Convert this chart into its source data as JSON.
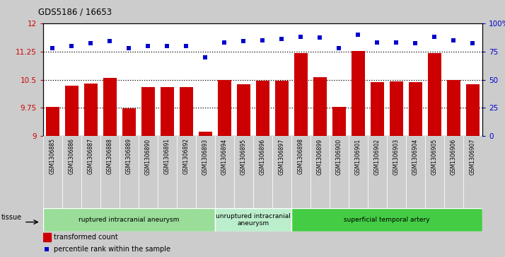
{
  "title": "GDS5186 / 16653",
  "samples": [
    "GSM1306885",
    "GSM1306886",
    "GSM1306887",
    "GSM1306888",
    "GSM1306889",
    "GSM1306890",
    "GSM1306891",
    "GSM1306892",
    "GSM1306893",
    "GSM1306894",
    "GSM1306895",
    "GSM1306896",
    "GSM1306897",
    "GSM1306898",
    "GSM1306899",
    "GSM1306900",
    "GSM1306901",
    "GSM1306902",
    "GSM1306903",
    "GSM1306904",
    "GSM1306905",
    "GSM1306906",
    "GSM1306907"
  ],
  "transformed_count": [
    9.78,
    10.35,
    10.4,
    10.55,
    9.74,
    10.3,
    10.3,
    10.3,
    9.12,
    10.5,
    10.38,
    10.47,
    10.47,
    11.2,
    10.57,
    9.78,
    11.27,
    10.44,
    10.45,
    10.43,
    11.2,
    10.5,
    10.37
  ],
  "percentile_rank": [
    78,
    80,
    82,
    84,
    78,
    80,
    80,
    80,
    70,
    83,
    84,
    85,
    86,
    88,
    87,
    78,
    90,
    83,
    83,
    82,
    88,
    85,
    82
  ],
  "bar_color": "#cc0000",
  "dot_color": "#0000cc",
  "ylim_left": [
    9,
    12
  ],
  "ylim_right": [
    0,
    100
  ],
  "yticks_left": [
    9,
    9.75,
    10.5,
    11.25,
    12
  ],
  "yticks_right": [
    0,
    25,
    50,
    75,
    100
  ],
  "ytick_labels_left": [
    "9",
    "9.75",
    "10.5",
    "11.25",
    "12"
  ],
  "ytick_labels_right": [
    "0",
    "25",
    "50",
    "75",
    "100%"
  ],
  "hlines": [
    9.75,
    10.5,
    11.25
  ],
  "groups": [
    {
      "label": "ruptured intracranial aneurysm",
      "start": 0,
      "end": 9,
      "color": "#99dd99"
    },
    {
      "label": "unruptured intracranial\naneurysm",
      "start": 9,
      "end": 13,
      "color": "#bbeecc"
    },
    {
      "label": "superficial temporal artery",
      "start": 13,
      "end": 23,
      "color": "#44cc44"
    }
  ],
  "tissue_label": "tissue",
  "legend_bar_label": "transformed count",
  "legend_dot_label": "percentile rank within the sample",
  "background_color": "#cccccc",
  "plot_bg_color": "#ffffff",
  "cell_bg_color": "#cccccc"
}
